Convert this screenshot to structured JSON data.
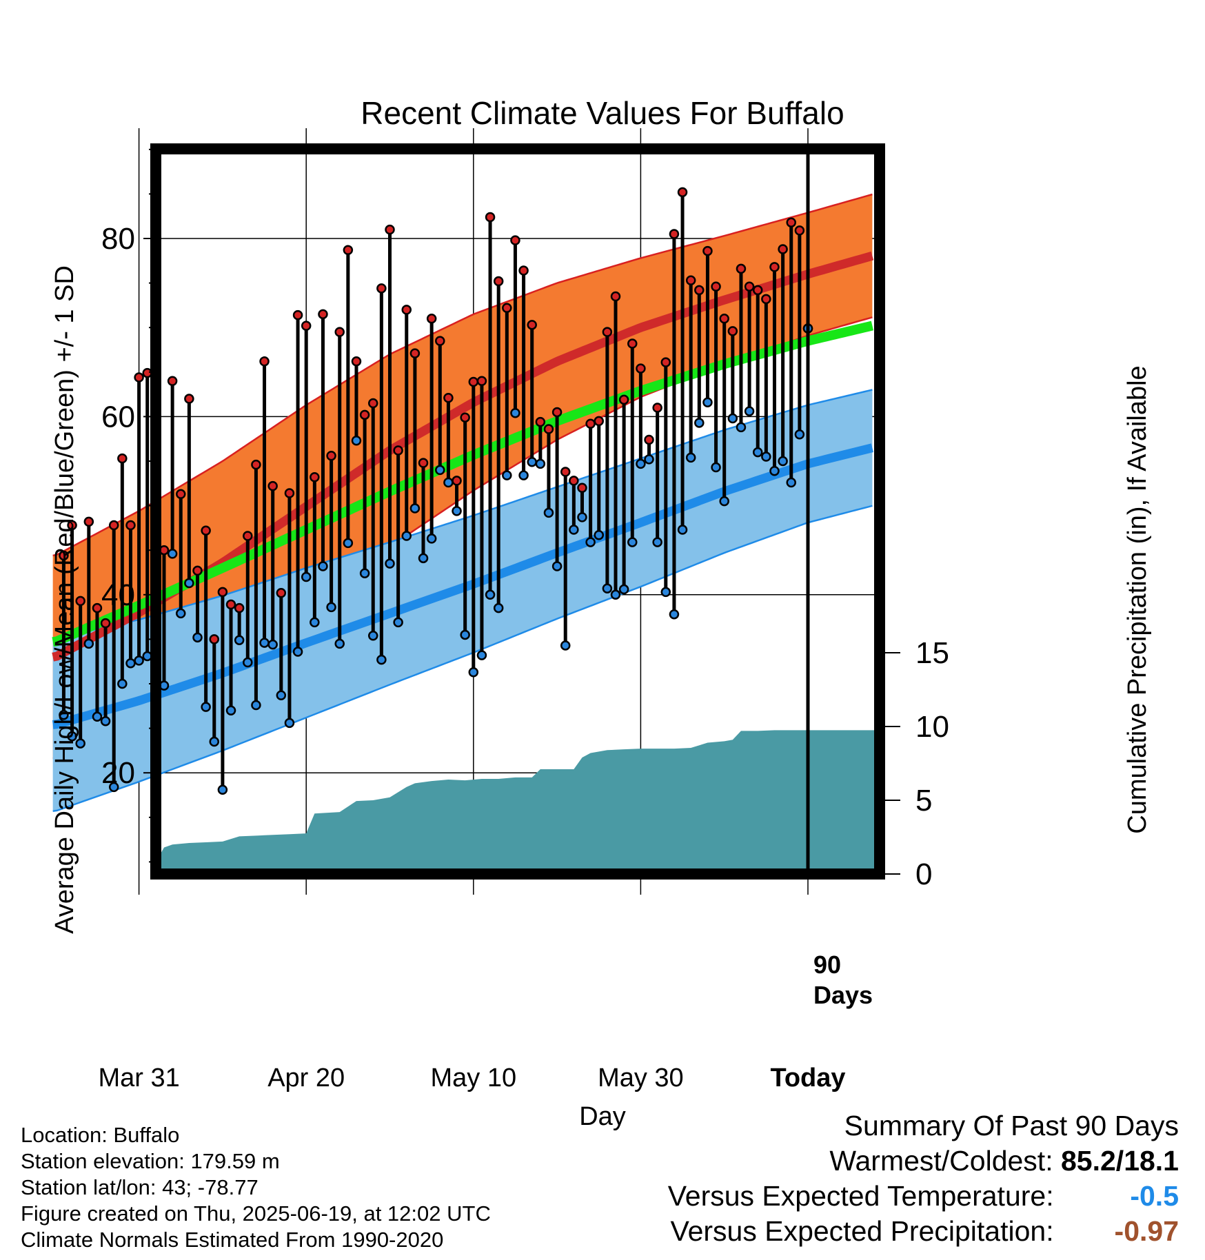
{
  "title": "Recent Climate Values For Buffalo",
  "colors": {
    "high_band": "#f47a30",
    "high_band_edge": "#d82020",
    "high_mean": "#cf2a2a",
    "low_band": "#84c1ea",
    "low_band_edge": "#1f8be8",
    "low_mean": "#1f8be8",
    "mean_line": "#17e617",
    "precip_fill": "#4a9aa4",
    "high_dot": "#d42424",
    "low_dot": "#2b86dc",
    "today_line": "#000000",
    "versus_temp_color": "#1f8be8",
    "versus_precip_color": "#a0522d"
  },
  "chart_data": {
    "type": "line",
    "title": "Recent Climate Values For Buffalo",
    "xlabel": "Day",
    "ylabel": "Average Daily High/Low/Mean (Red/Blue/Green) +/- 1 SD",
    "y2label": "Cumulative Precipitation (in), If Available",
    "x_range_days": [
      -90,
      11
    ],
    "ylim": [
      9,
      90
    ],
    "y2lim": [
      0,
      25
    ],
    "yticks": [
      20,
      40,
      60,
      80
    ],
    "y2ticks": [
      0,
      5,
      10,
      15
    ],
    "xticks": [
      {
        "day": -80,
        "label": "Mar 31"
      },
      {
        "day": -60,
        "label": "Apr 20"
      },
      {
        "day": -40,
        "label": "May 10"
      },
      {
        "day": -20,
        "label": "May 30"
      },
      {
        "day": 0,
        "label": "Today"
      }
    ],
    "today_label": "90 Days",
    "grid": true,
    "normals": {
      "day": [
        -90,
        -80,
        -70,
        -60,
        -50,
        -40,
        -30,
        -20,
        -10,
        0,
        9
      ],
      "high_mean": [
        33.0,
        38.0,
        43.6,
        49.9,
        56.2,
        61.6,
        66.2,
        70.0,
        73.1,
        76.0,
        78.4
      ],
      "high_sd": [
        11.4,
        11.4,
        11.4,
        11.4,
        10.8,
        9.9,
        8.8,
        7.8,
        7.2,
        6.9,
        6.9
      ],
      "low_mean": [
        25.4,
        28.1,
        31.2,
        34.6,
        37.9,
        41.2,
        44.7,
        48.1,
        51.6,
        54.7,
        56.8
      ],
      "low_sd": [
        9.7,
        9.1,
        8.7,
        8.4,
        8.0,
        7.7,
        7.4,
        7.2,
        6.9,
        6.6,
        6.5
      ],
      "mean": [
        34.7,
        38.8,
        43.0,
        47.3,
        51.6,
        55.7,
        59.5,
        62.9,
        65.9,
        68.5,
        70.5
      ]
    },
    "daily": {
      "day": [
        -89,
        -88,
        -87,
        -86,
        -85,
        -84,
        -83,
        -82,
        -81,
        -80,
        -79,
        -78,
        -77,
        -76,
        -75,
        -74,
        -73,
        -72,
        -71,
        -70,
        -69,
        -68,
        -67,
        -66,
        -65,
        -64,
        -63,
        -62,
        -61,
        -60,
        -59,
        -58,
        -57,
        -56,
        -55,
        -54,
        -53,
        -52,
        -51,
        -50,
        -49,
        -48,
        -47,
        -46,
        -45,
        -44,
        -43,
        -42,
        -41,
        -40,
        -39,
        -38,
        -37,
        -36,
        -35,
        -34,
        -33,
        -32,
        -31,
        -30,
        -29,
        -28,
        -27,
        -26,
        -25,
        -24,
        -23,
        -22,
        -21,
        -20,
        -19,
        -18,
        -17,
        -16,
        -15,
        -14,
        -13,
        -12,
        -11,
        -10,
        -9,
        -8,
        -7,
        -6,
        -5,
        -4,
        -3,
        -2,
        -1,
        0
      ],
      "high": [
        44.4,
        47.8,
        39.3,
        48.2,
        38.5,
        36.8,
        47.8,
        55.3,
        47.8,
        64.4,
        64.9,
        38.9,
        45.0,
        64.0,
        51.3,
        62.0,
        42.7,
        47.2,
        35.0,
        40.3,
        38.9,
        38.5,
        46.6,
        54.6,
        66.2,
        52.2,
        40.2,
        51.4,
        71.4,
        70.2,
        53.2,
        71.5,
        55.6,
        69.5,
        78.7,
        66.2,
        60.2,
        61.5,
        74.4,
        81.0,
        56.2,
        72.0,
        67.1,
        54.8,
        71.0,
        68.5,
        62.1,
        52.8,
        59.9,
        63.9,
        64.0,
        82.4,
        75.2,
        72.2,
        79.8,
        76.4,
        70.3,
        59.4,
        58.6,
        60.5,
        53.8,
        52.8,
        52.0,
        59.2,
        59.5,
        69.5,
        73.5,
        61.9,
        68.2,
        65.4,
        57.4,
        61.0,
        66.1,
        80.5,
        85.2,
        75.3,
        74.2,
        78.6,
        74.6,
        71.0,
        69.6,
        76.6,
        74.6,
        74.2,
        73.2,
        76.8,
        78.8,
        81.8,
        80.9,
        69.9
      ],
      "low": [
        26.5,
        24.1,
        23.3,
        34.5,
        26.3,
        25.8,
        18.4,
        30.0,
        32.3,
        32.6,
        33.1,
        28.4,
        29.8,
        44.6,
        37.9,
        41.3,
        35.2,
        27.4,
        23.5,
        18.1,
        27.0,
        34.9,
        32.4,
        27.6,
        34.6,
        34.4,
        28.7,
        25.6,
        33.6,
        42.0,
        36.9,
        43.2,
        38.6,
        34.5,
        45.8,
        57.3,
        42.4,
        35.4,
        32.7,
        43.5,
        36.9,
        46.6,
        49.7,
        44.1,
        46.3,
        54.0,
        52.6,
        49.4,
        35.5,
        31.3,
        33.2,
        40.0,
        38.5,
        53.4,
        60.4,
        53.4,
        54.9,
        54.7,
        49.2,
        43.2,
        34.3,
        47.3,
        48.7,
        45.9,
        46.7,
        40.7,
        40.0,
        40.6,
        45.9,
        54.7,
        55.2,
        45.9,
        40.3,
        37.8,
        47.3,
        55.4,
        59.3,
        61.6,
        54.3,
        50.5,
        59.8,
        58.8,
        60.6,
        56.0,
        55.5,
        53.9,
        55.0,
        52.6,
        58.0,
        69.9
      ]
    },
    "precip": {
      "day": [
        -90,
        -82.5,
        -81.5,
        -80.5,
        -79.5,
        -78,
        -77,
        -76,
        -74,
        -72,
        -70,
        -68,
        -66,
        -64,
        -62,
        -60,
        -59,
        -56,
        -54,
        -52,
        -50,
        -48,
        -47,
        -45,
        -43,
        -41,
        -39,
        -37,
        -35,
        -33,
        -32,
        -28,
        -27,
        -26,
        -24,
        -22,
        -20,
        -18,
        -16,
        -14,
        -12,
        -10,
        -9,
        -8,
        -6,
        -4,
        -2,
        0,
        9
      ],
      "cum": [
        0,
        0,
        0.5,
        0.8,
        0.8,
        0.8,
        1.8,
        2.0,
        2.1,
        2.15,
        2.2,
        2.55,
        2.6,
        2.65,
        2.7,
        2.75,
        4.1,
        4.2,
        4.95,
        5.0,
        5.2,
        5.9,
        6.15,
        6.3,
        6.4,
        6.35,
        6.45,
        6.45,
        6.55,
        6.55,
        7.1,
        7.1,
        7.9,
        8.2,
        8.4,
        8.45,
        8.5,
        8.5,
        8.5,
        8.55,
        8.9,
        9.0,
        9.1,
        9.7,
        9.7,
        9.75,
        9.75,
        9.75,
        9.75
      ]
    }
  },
  "footer": {
    "location": "Location: Buffalo",
    "elevation": "Station elevation: 179.59 m",
    "latlon": "Station lat/lon: 43; -78.77",
    "created": "Figure created on Thu, 2025-06-19, at 12:02 UTC",
    "normals": "Climate Normals Estimated From 1990-2020"
  },
  "summary": {
    "heading": "Summary Of Past 90 Days",
    "warmest_coldest_label": "Warmest/Coldest:",
    "warmest_coldest_value": "85.2/18.1",
    "versus_temp_label": "Versus Expected Temperature:",
    "versus_temp_value": "-0.5",
    "versus_precip_label": "Versus Expected Precipitation:",
    "versus_precip_value": "-0.97"
  }
}
